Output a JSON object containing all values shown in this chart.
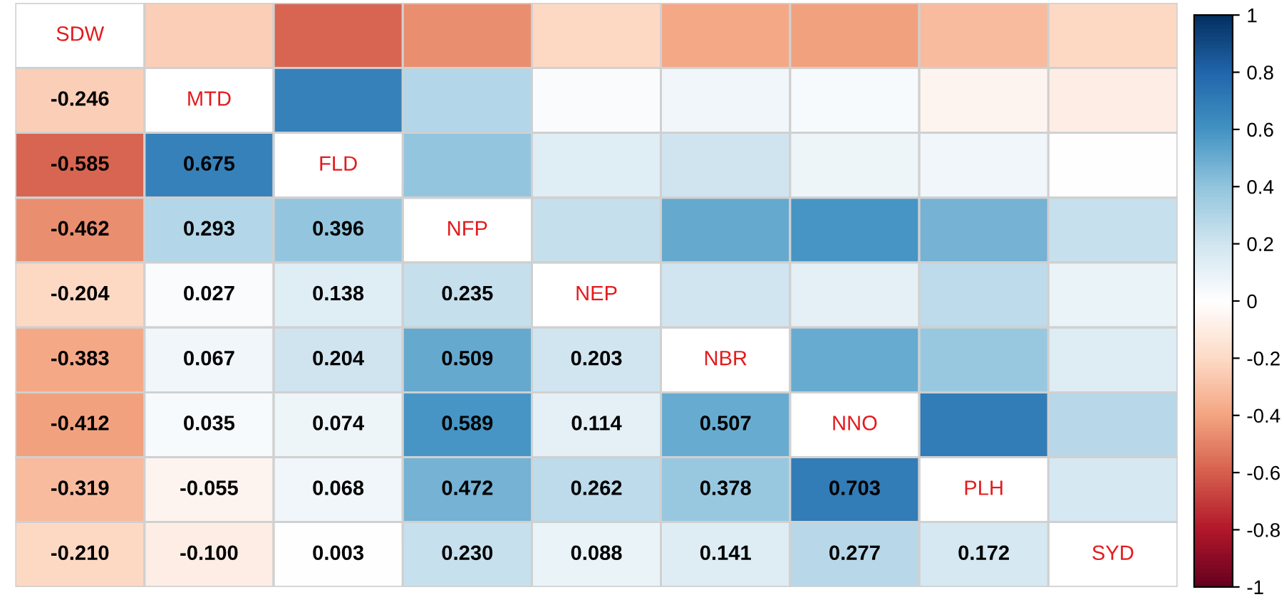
{
  "chart_data": {
    "type": "heatmap",
    "categories": [
      null,
      null,
      null,
      null,
      null,
      null,
      null,
      null,
      null
    ],
    "y_categories": [
      null,
      null,
      null,
      null,
      null,
      null,
      null,
      null,
      null
    ],
    "cells": [
      [
        null,
        -0.246,
        -0.585,
        -0.462,
        -0.204,
        -0.383,
        -0.412,
        -0.319,
        -0.21
      ],
      [
        -0.246,
        null,
        0.675,
        0.293,
        0.027,
        0.067,
        0.035,
        -0.055,
        -0.1
      ],
      [
        -0.585,
        0.675,
        null,
        0.396,
        0.138,
        0.204,
        0.074,
        0.068,
        0.003
      ],
      [
        -0.462,
        0.293,
        0.396,
        null,
        0.235,
        0.509,
        0.589,
        0.472,
        0.23
      ],
      [
        -0.204,
        0.027,
        0.138,
        0.235,
        null,
        0.203,
        0.114,
        0.262,
        0.088
      ],
      [
        -0.383,
        0.067,
        0.204,
        0.509,
        0.203,
        null,
        0.507,
        0.378,
        0.141
      ],
      [
        -0.412,
        0.035,
        0.074,
        0.589,
        0.114,
        0.507,
        null,
        0.703,
        0.277
      ],
      [
        -0.319,
        -0.055,
        0.068,
        0.472,
        0.262,
        0.378,
        0.703,
        null,
        0.172
      ],
      [
        -0.21,
        -0.1,
        0.003,
        0.23,
        0.088,
        0.141,
        0.277,
        0.172,
        null
      ]
    ],
    "cell_labels": [
      [
        "SDW",
        null,
        null,
        null,
        null,
        null,
        null,
        null,
        null
      ],
      [
        "-0.246",
        "MTD",
        null,
        null,
        null,
        null,
        null,
        null,
        null
      ],
      [
        "-0.585",
        "0.675",
        "FLD",
        null,
        null,
        null,
        null,
        null,
        null
      ],
      [
        "-0.462",
        "0.293",
        "0.396",
        "NFP",
        null,
        null,
        null,
        null,
        null
      ],
      [
        "-0.204",
        "0.027",
        "0.138",
        "0.235",
        "NEP",
        null,
        null,
        null,
        null
      ],
      [
        "-0.383",
        "0.067",
        "0.204",
        "0.509",
        "0.203",
        "NBR",
        null,
        null,
        null
      ],
      [
        "-0.412",
        "0.035",
        "0.074",
        "0.589",
        "0.114",
        "0.507",
        "NNO",
        null,
        null
      ],
      [
        "-0.319",
        "-0.055",
        "0.068",
        "0.472",
        "0.262",
        "0.378",
        "0.703",
        "PLH",
        null
      ],
      [
        "-0.210",
        "-0.100",
        "0.003",
        "0.230",
        "0.088",
        "0.141",
        "0.277",
        "0.172",
        "SYD"
      ]
    ],
    "clim": [
      -1,
      1
    ],
    "cticks": [
      -1,
      -0.8,
      -0.6,
      -0.4,
      -0.2,
      0,
      0.2,
      0.4,
      0.6,
      0.8,
      1
    ]
  }
}
